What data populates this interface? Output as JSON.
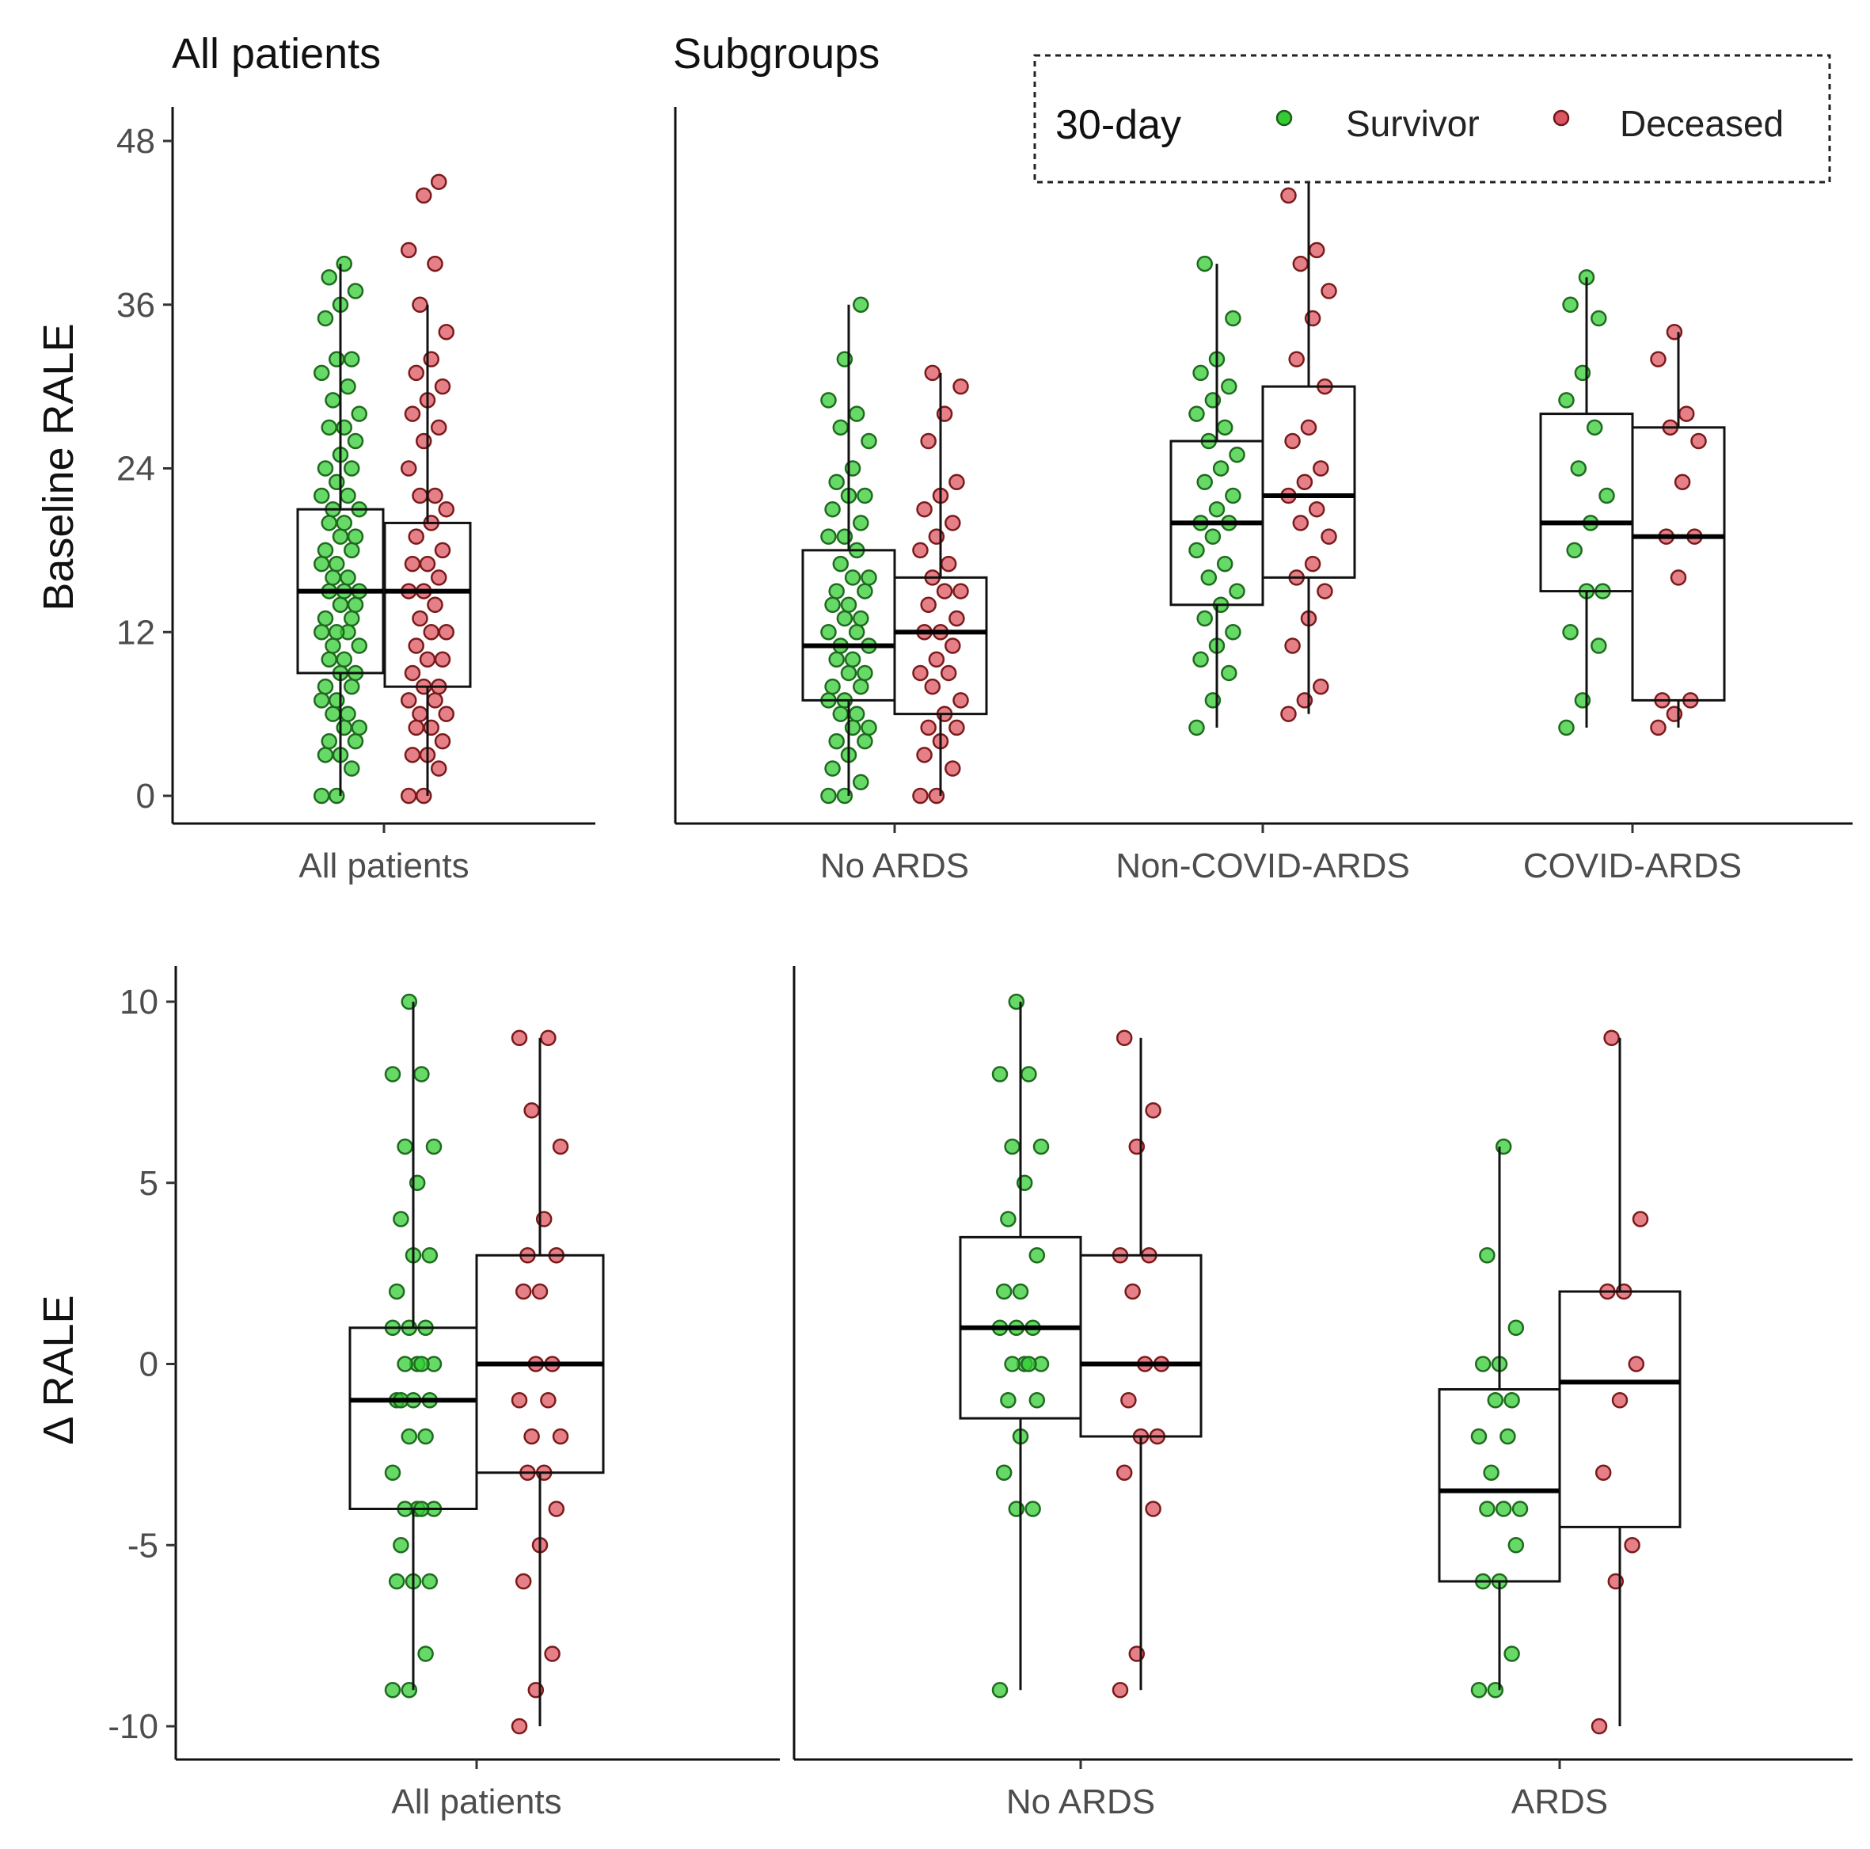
{
  "legend": {
    "title": "30-day",
    "position": "top-right",
    "entries": [
      {
        "label": "Survivor",
        "color": "#33cc33"
      },
      {
        "label": "Deceased",
        "color": "#dd5560"
      }
    ]
  },
  "chart_data": [
    {
      "id": "top-left",
      "type": "boxplot",
      "title": "All patients",
      "ylabel": "Baseline RALE",
      "ylim": [
        0,
        48
      ],
      "yticks": [
        "0",
        "12",
        "24",
        "36",
        "48"
      ],
      "categories": [
        "All patients"
      ],
      "series": [
        {
          "name": "Survivor",
          "groups": [
            {
              "category": "All patients",
              "q1": 9,
              "median": 15,
              "q3": 21,
              "whisker_low": 0,
              "whisker_high": 39,
              "points": [
                0,
                0,
                2,
                3,
                3,
                4,
                4,
                5,
                5,
                6,
                6,
                7,
                7,
                8,
                8,
                9,
                9,
                10,
                10,
                11,
                11,
                12,
                12,
                12,
                13,
                13,
                14,
                14,
                15,
                15,
                15,
                16,
                16,
                17,
                17,
                18,
                18,
                19,
                19,
                20,
                20,
                21,
                21,
                22,
                22,
                23,
                24,
                24,
                25,
                26,
                27,
                27,
                28,
                29,
                30,
                31,
                32,
                32,
                35,
                36,
                37,
                38,
                39
              ]
            }
          ]
        },
        {
          "name": "Deceased",
          "groups": [
            {
              "category": "All patients",
              "q1": 8,
              "median": 15,
              "q3": 20,
              "whisker_low": 0,
              "whisker_high": 36,
              "points": [
                0,
                0,
                2,
                3,
                3,
                4,
                5,
                5,
                6,
                6,
                7,
                7,
                8,
                8,
                9,
                10,
                10,
                11,
                12,
                12,
                13,
                14,
                15,
                15,
                16,
                17,
                17,
                18,
                19,
                20,
                21,
                22,
                22,
                24,
                26,
                27,
                28,
                29,
                30,
                31,
                32,
                34,
                36,
                39,
                40,
                44,
                45
              ]
            }
          ]
        }
      ]
    },
    {
      "id": "top-right",
      "type": "boxplot",
      "title": "Subgroups",
      "ylabel": "",
      "ylim": [
        0,
        48
      ],
      "categories": [
        "No ARDS",
        "Non-COVID-ARDS",
        "COVID-ARDS"
      ],
      "series": [
        {
          "name": "Survivor",
          "groups": [
            {
              "category": "No ARDS",
              "q1": 7,
              "median": 11,
              "q3": 18,
              "whisker_low": 0,
              "whisker_high": 36,
              "points": [
                0,
                0,
                1,
                2,
                3,
                4,
                4,
                5,
                5,
                6,
                6,
                7,
                7,
                8,
                8,
                9,
                9,
                10,
                10,
                11,
                11,
                12,
                12,
                13,
                13,
                14,
                14,
                15,
                15,
                16,
                16,
                17,
                18,
                19,
                19,
                20,
                21,
                22,
                22,
                23,
                24,
                26,
                27,
                28,
                29,
                32,
                36
              ]
            },
            {
              "category": "Non-COVID-ARDS",
              "q1": 14,
              "median": 20,
              "q3": 26,
              "whisker_low": 5,
              "whisker_high": 39,
              "points": [
                5,
                7,
                9,
                10,
                11,
                12,
                13,
                14,
                15,
                16,
                17,
                18,
                19,
                20,
                20,
                21,
                22,
                23,
                24,
                25,
                26,
                27,
                28,
                29,
                30,
                31,
                32,
                35,
                39
              ]
            },
            {
              "category": "COVID-ARDS",
              "q1": 15,
              "median": 20,
              "q3": 28,
              "whisker_low": 5,
              "whisker_high": 38,
              "points": [
                5,
                7,
                11,
                12,
                15,
                15,
                18,
                20,
                22,
                24,
                27,
                29,
                31,
                35,
                36,
                38
              ]
            }
          ]
        },
        {
          "name": "Deceased",
          "groups": [
            {
              "category": "No ARDS",
              "q1": 6,
              "median": 12,
              "q3": 16,
              "whisker_low": 0,
              "whisker_high": 31,
              "points": [
                0,
                0,
                2,
                3,
                4,
                5,
                5,
                6,
                7,
                8,
                9,
                9,
                10,
                11,
                12,
                12,
                13,
                14,
                15,
                15,
                16,
                17,
                18,
                19,
                20,
                21,
                22,
                23,
                26,
                28,
                30,
                31
              ]
            },
            {
              "category": "Non-COVID-ARDS",
              "q1": 16,
              "median": 22,
              "q3": 30,
              "whisker_low": 6,
              "whisker_high": 45,
              "points": [
                6,
                7,
                8,
                11,
                13,
                15,
                16,
                17,
                19,
                20,
                21,
                22,
                23,
                24,
                26,
                27,
                30,
                32,
                35,
                37,
                39,
                40,
                44
              ]
            },
            {
              "category": "COVID-ARDS",
              "q1": 7,
              "median": 19,
              "q3": 27,
              "whisker_low": 5,
              "whisker_high": 34,
              "points": [
                5,
                6,
                7,
                7,
                16,
                19,
                19,
                23,
                26,
                27,
                28,
                32,
                34
              ]
            }
          ]
        }
      ]
    },
    {
      "id": "bottom-left",
      "type": "boxplot",
      "title": "",
      "ylabel": "Δ RALE",
      "ylim": [
        -10,
        10
      ],
      "yticks": [
        "-10",
        "-5",
        "0",
        "5",
        "10"
      ],
      "categories": [
        "All patients"
      ],
      "series": [
        {
          "name": "Survivor",
          "groups": [
            {
              "category": "All patients",
              "q1": -4,
              "median": -1,
              "q3": 1,
              "whisker_low": -9,
              "whisker_high": 10,
              "points": [
                -9,
                -9,
                -8,
                -6,
                -6,
                -6,
                -5,
                -4,
                -4,
                -4,
                -4,
                -3,
                -2,
                -2,
                -1,
                -1,
                -1,
                -1,
                0,
                0,
                0,
                0,
                1,
                1,
                1,
                2,
                3,
                3,
                4,
                5,
                6,
                6,
                8,
                8,
                10
              ]
            }
          ]
        },
        {
          "name": "Deceased",
          "groups": [
            {
              "category": "All patients",
              "q1": -3,
              "median": 0,
              "q3": 3,
              "whisker_low": -10,
              "whisker_high": 9,
              "points": [
                -10,
                -9,
                -8,
                -6,
                -5,
                -4,
                -3,
                -3,
                -2,
                -2,
                -1,
                -1,
                0,
                0,
                2,
                2,
                3,
                3,
                4,
                6,
                7,
                9,
                9
              ]
            }
          ]
        }
      ]
    },
    {
      "id": "bottom-right",
      "type": "boxplot",
      "title": "",
      "ylabel": "",
      "ylim": [
        -10,
        10
      ],
      "categories": [
        "No ARDS",
        "ARDS"
      ],
      "series": [
        {
          "name": "Survivor",
          "groups": [
            {
              "category": "No ARDS",
              "q1": -1.5,
              "median": 1,
              "q3": 3.5,
              "whisker_low": -9,
              "whisker_high": 10,
              "points": [
                -9,
                -4,
                -4,
                -3,
                -2,
                -1,
                -1,
                0,
                0,
                0,
                0,
                1,
                1,
                1,
                2,
                2,
                3,
                4,
                5,
                6,
                6,
                8,
                8,
                10
              ]
            },
            {
              "category": "ARDS",
              "q1": -6,
              "median": -3.5,
              "q3": -0.7,
              "whisker_low": -9,
              "whisker_high": 6,
              "points": [
                -9,
                -9,
                -8,
                -6,
                -6,
                -5,
                -4,
                -4,
                -4,
                -3,
                -2,
                -2,
                -1,
                -1,
                0,
                0,
                1,
                3,
                6
              ]
            }
          ]
        },
        {
          "name": "Deceased",
          "groups": [
            {
              "category": "No ARDS",
              "q1": -2,
              "median": 0,
              "q3": 3,
              "whisker_low": -9,
              "whisker_high": 9,
              "points": [
                -9,
                -8,
                -4,
                -3,
                -2,
                -2,
                -1,
                0,
                0,
                2,
                3,
                3,
                6,
                7,
                9
              ]
            },
            {
              "category": "ARDS",
              "q1": -4.5,
              "median": -0.5,
              "q3": 2,
              "whisker_low": -10,
              "whisker_high": 9,
              "points": [
                -10,
                -6,
                -5,
                -3,
                -1,
                0,
                2,
                2,
                4,
                9
              ]
            }
          ]
        }
      ]
    }
  ]
}
